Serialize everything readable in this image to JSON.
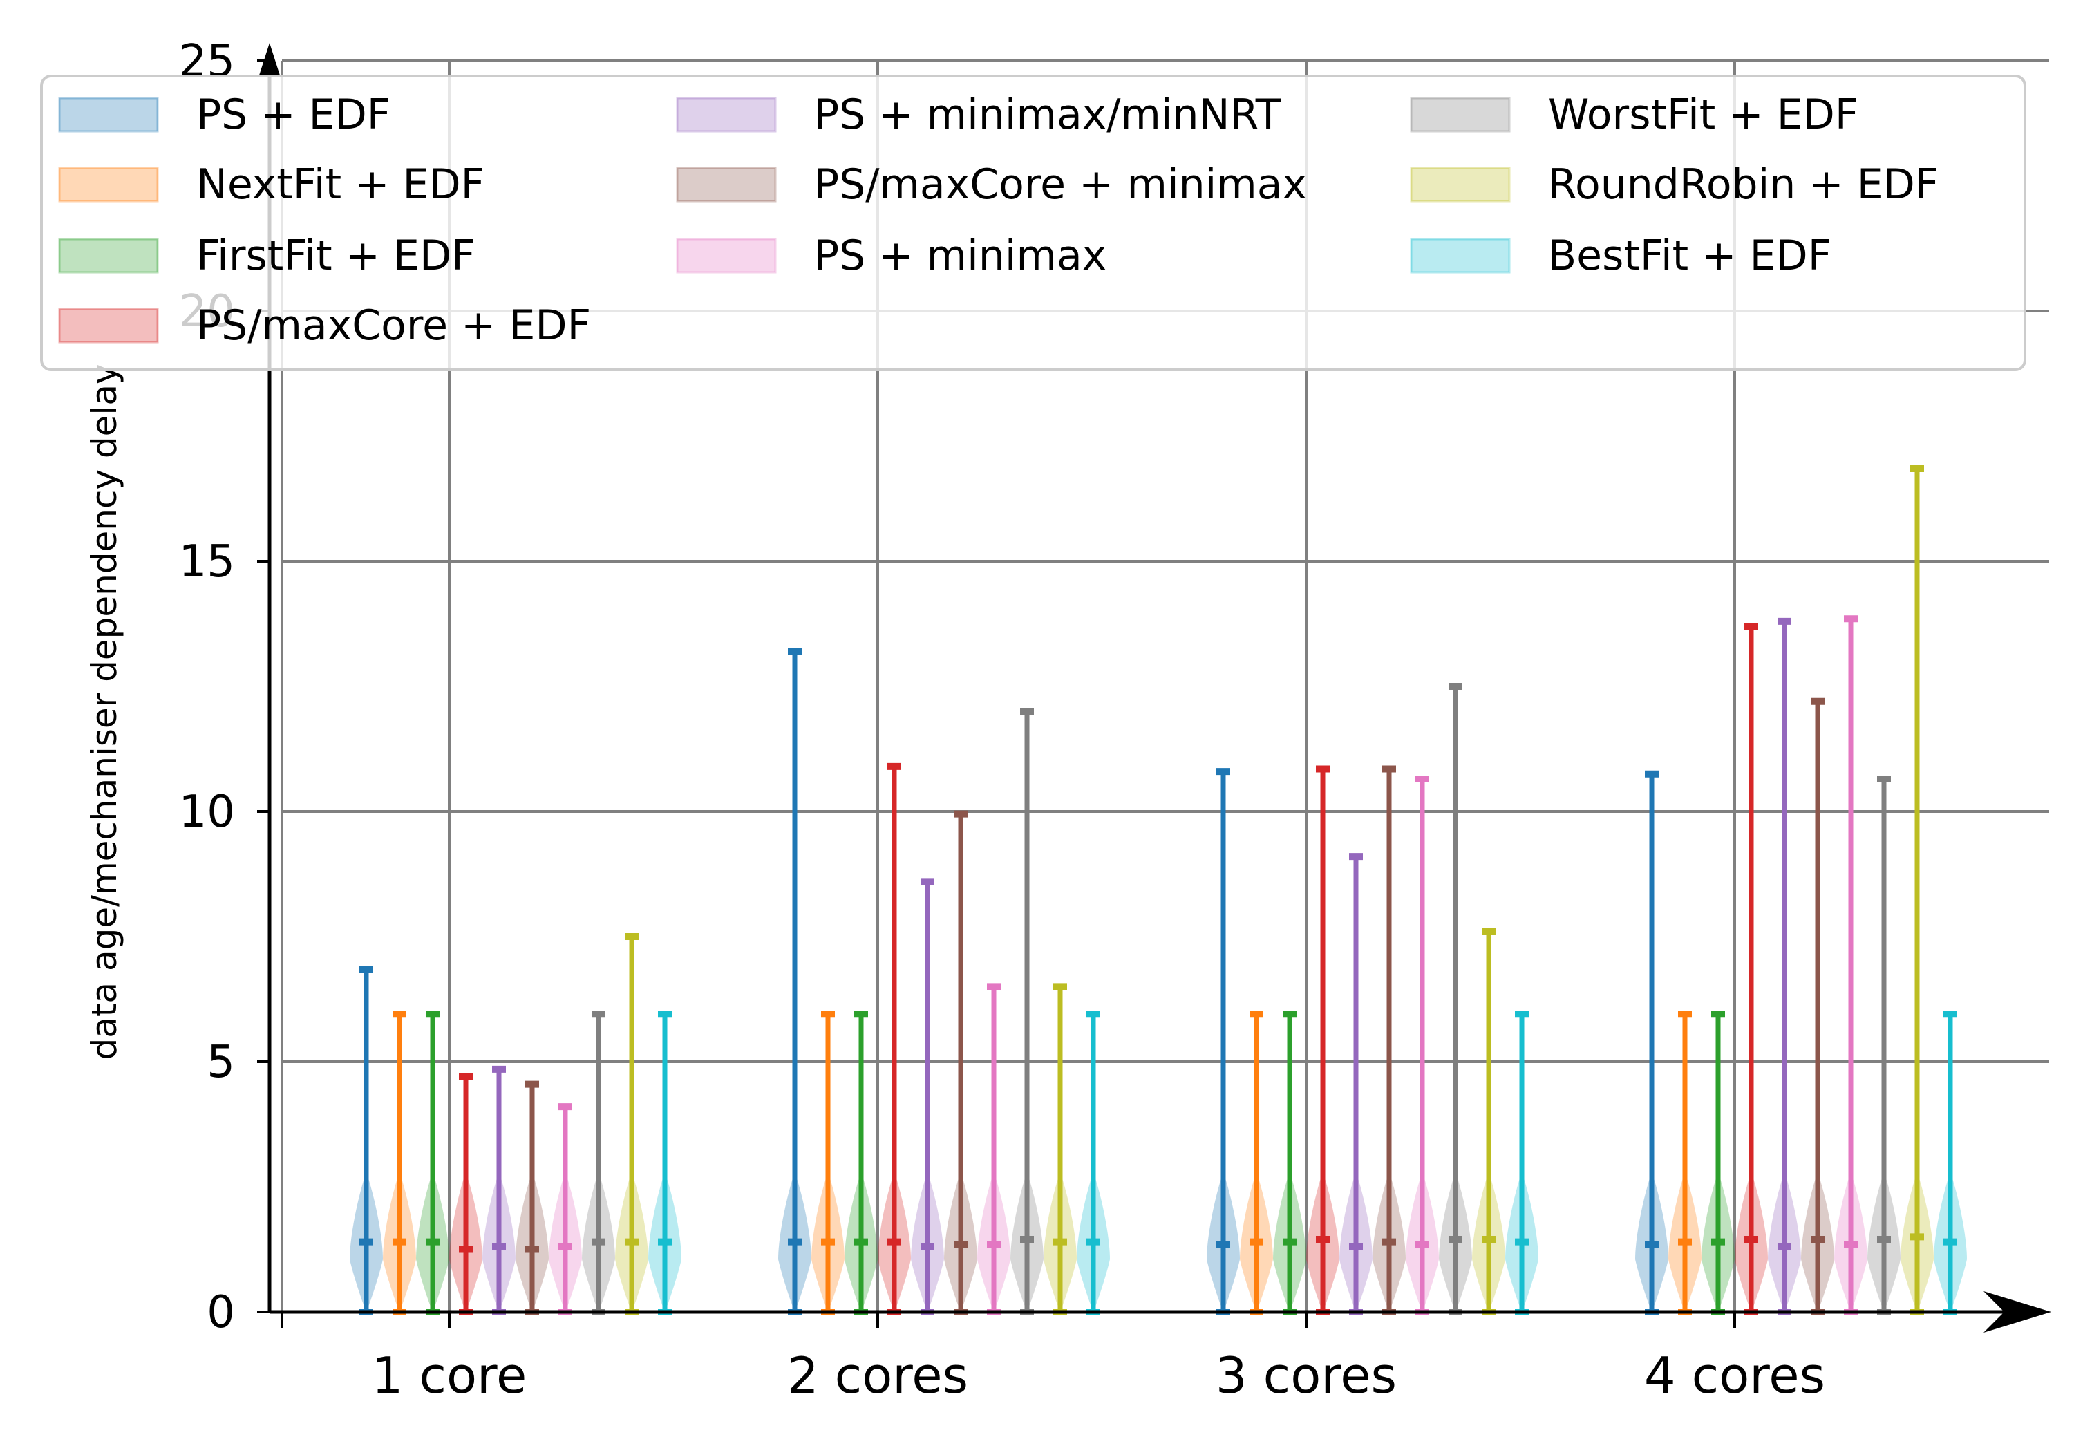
{
  "chart_data": {
    "type": "violin",
    "title": "",
    "xlabel": "",
    "ylabel": "data age/mechaniser dependency delay",
    "ylim": [
      0,
      25
    ],
    "yticks": [
      0,
      5,
      10,
      15,
      20,
      25
    ],
    "grid": true,
    "legend_placement": "top, 3 columns",
    "categories": [
      "1 core",
      "2 cores",
      "3 cores",
      "4 cores"
    ],
    "series": [
      {
        "name": "PS + EDF",
        "color": "#1f77b4",
        "max": [
          6.85,
          13.2,
          10.8,
          10.75
        ],
        "median": [
          1.4,
          1.4,
          1.35,
          1.35
        ]
      },
      {
        "name": "NextFit + EDF",
        "color": "#ff7f0e",
        "max": [
          5.95,
          5.95,
          5.95,
          5.95
        ],
        "median": [
          1.4,
          1.4,
          1.4,
          1.4
        ]
      },
      {
        "name": "FirstFit + EDF",
        "color": "#2ca02c",
        "max": [
          5.95,
          5.95,
          5.95,
          5.95
        ],
        "median": [
          1.4,
          1.4,
          1.4,
          1.4
        ]
      },
      {
        "name": "PS/maxCore + EDF",
        "color": "#d62728",
        "max": [
          4.7,
          10.9,
          10.85,
          13.7
        ],
        "median": [
          1.25,
          1.4,
          1.45,
          1.45
        ]
      },
      {
        "name": "PS + minimax/minNRT",
        "color": "#9467bd",
        "max": [
          4.85,
          8.6,
          9.1,
          13.8
        ],
        "median": [
          1.3,
          1.3,
          1.3,
          1.3
        ]
      },
      {
        "name": "PS/maxCore + minimax",
        "color": "#8c564b",
        "max": [
          4.55,
          9.95,
          10.85,
          12.2
        ],
        "median": [
          1.25,
          1.35,
          1.4,
          1.45
        ]
      },
      {
        "name": "PS + minimax",
        "color": "#e377c2",
        "max": [
          4.1,
          6.5,
          10.65,
          13.85
        ],
        "median": [
          1.3,
          1.35,
          1.35,
          1.35
        ]
      },
      {
        "name": "WorstFit + EDF",
        "color": "#7f7f7f",
        "max": [
          5.95,
          12.0,
          12.5,
          10.65
        ],
        "median": [
          1.4,
          1.45,
          1.45,
          1.45
        ]
      },
      {
        "name": "RoundRobin + EDF",
        "color": "#bcbd22",
        "max": [
          7.5,
          6.5,
          7.6,
          16.85
        ],
        "median": [
          1.4,
          1.4,
          1.45,
          1.5
        ]
      },
      {
        "name": "BestFit + EDF",
        "color": "#17becf",
        "max": [
          5.95,
          5.95,
          5.95,
          5.95
        ],
        "median": [
          1.4,
          1.4,
          1.4,
          1.4
        ]
      }
    ],
    "distribution_note": "each violin min 0, densest near 1.0-1.5"
  }
}
